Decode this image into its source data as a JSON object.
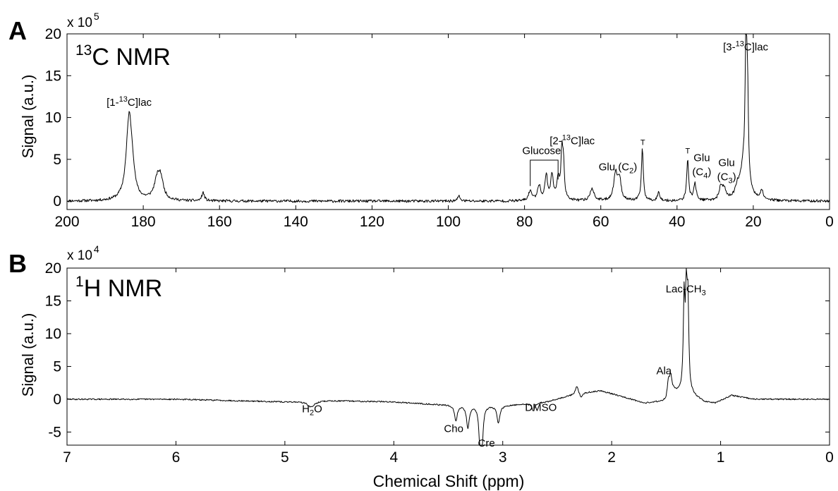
{
  "figure": {
    "xlabel": "Chemical Shift (ppm)"
  },
  "chart_data": [
    {
      "type": "line",
      "panel_label": "A",
      "title": "13C NMR",
      "title_parts": {
        "sup": "13",
        "main": "C NMR"
      },
      "ylabel": "Signal (a.u.)",
      "y_multiplier": {
        "base": "x 10",
        "exponent": "5"
      },
      "xlim": [
        200,
        0
      ],
      "ylim": [
        -1,
        20
      ],
      "x_ticks": [
        200,
        180,
        160,
        140,
        120,
        100,
        80,
        60,
        40,
        20,
        0
      ],
      "y_ticks": [
        0,
        5,
        10,
        15,
        20
      ],
      "peaks": [
        {
          "x": 183.7,
          "y": 10.1,
          "w": 0.9
        },
        {
          "x": 182.8,
          "y": 1.6,
          "w": 0.6
        },
        {
          "x": 176.3,
          "y": 2.4,
          "w": 1.0
        },
        {
          "x": 175.4,
          "y": 2.0,
          "w": 0.8
        },
        {
          "x": 164.3,
          "y": 1.0,
          "w": 0.4
        },
        {
          "x": 97.2,
          "y": 0.6,
          "w": 0.4
        },
        {
          "x": 78.5,
          "y": 1.2,
          "w": 0.5
        },
        {
          "x": 76.2,
          "y": 1.8,
          "w": 0.5
        },
        {
          "x": 74.3,
          "y": 3.0,
          "w": 0.4
        },
        {
          "x": 72.8,
          "y": 3.0,
          "w": 0.4
        },
        {
          "x": 71.2,
          "y": 2.6,
          "w": 0.4
        },
        {
          "x": 70.2,
          "y": 5.2,
          "w": 0.3
        },
        {
          "x": 69.8,
          "y": 4.0,
          "w": 0.3
        },
        {
          "x": 62.3,
          "y": 1.5,
          "w": 0.6
        },
        {
          "x": 56.1,
          "y": 3.2,
          "w": 0.6
        },
        {
          "x": 55.1,
          "y": 2.4,
          "w": 0.5
        },
        {
          "x": 49.1,
          "y": 6.2,
          "w": 0.3
        },
        {
          "x": 44.8,
          "y": 1.0,
          "w": 0.4
        },
        {
          "x": 37.2,
          "y": 5.0,
          "w": 0.3
        },
        {
          "x": 35.3,
          "y": 2.0,
          "w": 0.4
        },
        {
          "x": 28.5,
          "y": 1.6,
          "w": 0.5
        },
        {
          "x": 27.6,
          "y": 1.2,
          "w": 0.5
        },
        {
          "x": 24.2,
          "y": 1.0,
          "w": 0.5
        },
        {
          "x": 22.5,
          "y": 4.0,
          "w": 1.2
        },
        {
          "x": 21.9,
          "y": 17.4,
          "w": 0.25
        },
        {
          "x": 21.5,
          "y": 9.6,
          "w": 0.25
        },
        {
          "x": 17.8,
          "y": 1.0,
          "w": 0.5
        }
      ],
      "annotations": [
        {
          "label": "[1-13C]lac",
          "x": 183.7,
          "y": 11.4
        },
        {
          "label": "Glucose",
          "x": 75.5,
          "y": 5.6
        },
        {
          "label": "[2-13C]lac",
          "x": 67.5,
          "y": 6.8
        },
        {
          "label": "Glu (C2)",
          "x": 55.5,
          "y": 3.7
        },
        {
          "label": "T",
          "x": 49.0,
          "y": 6.7
        },
        {
          "label": "T",
          "x": 37.2,
          "y": 5.7
        },
        {
          "label": "Glu (C4)",
          "x": 33.5,
          "y": 3.6
        },
        {
          "label": "Glu (C3)",
          "x": 27.0,
          "y": 3.0
        },
        {
          "label": "[3-13C]lac",
          "x": 22.0,
          "y": 18.0
        }
      ]
    },
    {
      "type": "line",
      "panel_label": "B",
      "title": "1H NMR",
      "title_parts": {
        "sup": "1",
        "main": "H NMR"
      },
      "ylabel": "Signal (a.u.)",
      "y_multiplier": {
        "base": "x 10",
        "exponent": "4"
      },
      "xlim": [
        7,
        0
      ],
      "ylim": [
        -7,
        20
      ],
      "x_ticks": [
        7,
        6,
        5,
        4,
        3,
        2,
        1,
        0
      ],
      "y_ticks": [
        -5,
        0,
        5,
        10,
        15,
        20
      ],
      "baseline": [
        [
          7.0,
          0.0
        ],
        [
          6.0,
          0.0
        ],
        [
          5.0,
          -0.4
        ],
        [
          4.6,
          -0.2
        ],
        [
          4.0,
          -0.4
        ],
        [
          3.6,
          -0.8
        ],
        [
          3.0,
          -1.0
        ],
        [
          2.6,
          -0.4
        ],
        [
          2.3,
          0.9
        ],
        [
          2.1,
          1.3
        ],
        [
          1.9,
          0.4
        ],
        [
          1.7,
          -0.6
        ],
        [
          1.5,
          -0.3
        ],
        [
          1.45,
          1.3
        ],
        [
          1.35,
          0.8
        ],
        [
          1.25,
          0.5
        ],
        [
          1.15,
          -0.4
        ],
        [
          1.05,
          -0.6
        ],
        [
          0.9,
          0.6
        ],
        [
          0.7,
          0.0
        ],
        [
          0.0,
          0.0
        ]
      ],
      "peaks": [
        {
          "x": 4.76,
          "y": -0.9,
          "w": 0.04
        },
        {
          "x": 3.43,
          "y": -2.4,
          "w": 0.015
        },
        {
          "x": 3.32,
          "y": -3.4,
          "w": 0.015
        },
        {
          "x": 3.21,
          "y": -4.9,
          "w": 0.012
        },
        {
          "x": 3.19,
          "y": -5.6,
          "w": 0.012
        },
        {
          "x": 3.04,
          "y": -2.6,
          "w": 0.015
        },
        {
          "x": 2.72,
          "y": -1.2,
          "w": 0.015
        },
        {
          "x": 2.32,
          "y": 1.2,
          "w": 0.015
        },
        {
          "x": 2.28,
          "y": -0.8,
          "w": 0.015
        },
        {
          "x": 1.48,
          "y": 2.2,
          "w": 0.012
        },
        {
          "x": 1.46,
          "y": 2.4,
          "w": 0.012
        },
        {
          "x": 1.335,
          "y": 13.8,
          "w": 0.009
        },
        {
          "x": 1.315,
          "y": 14.4,
          "w": 0.009
        },
        {
          "x": 1.3,
          "y": 13.0,
          "w": 0.009
        }
      ],
      "annotations": [
        {
          "label": "H2O",
          "x": 4.75,
          "y": -2.0
        },
        {
          "label": "Cho",
          "x": 3.45,
          "y": -5.0
        },
        {
          "label": "Cre",
          "x": 3.15,
          "y": -7.2
        },
        {
          "label": "DMSO",
          "x": 2.65,
          "y": -1.8
        },
        {
          "label": "Ala",
          "x": 1.52,
          "y": 3.8
        },
        {
          "label": "Lac-CH3",
          "x": 1.32,
          "y": 16.3
        }
      ]
    }
  ]
}
